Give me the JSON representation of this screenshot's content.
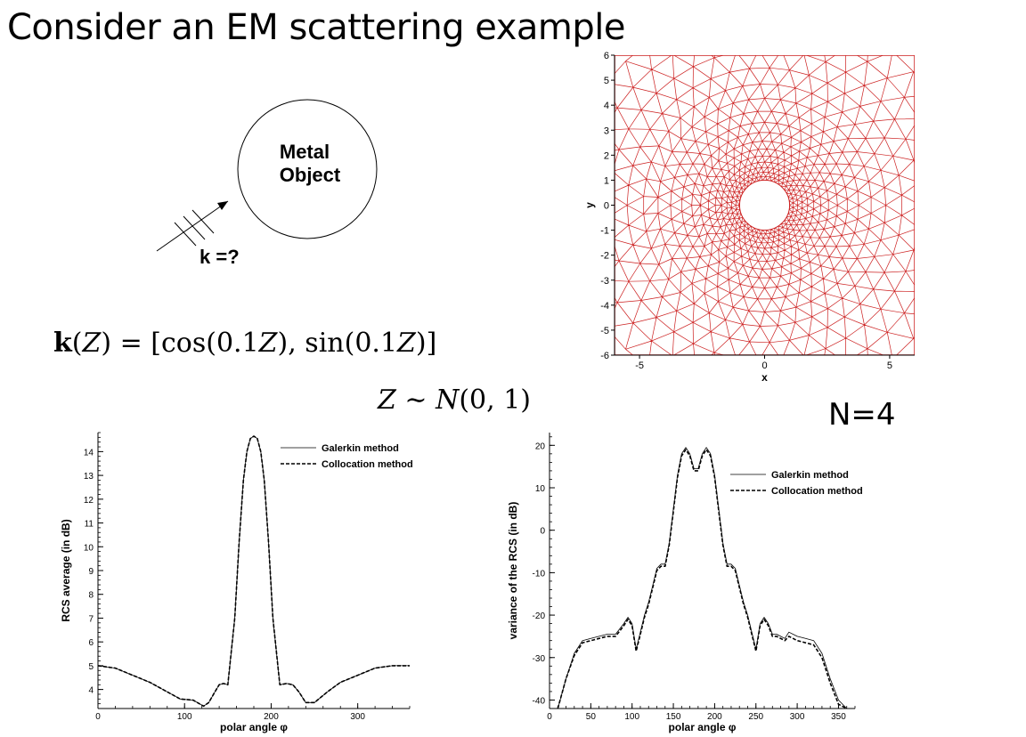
{
  "slide": {
    "title": "Consider an EM scattering example",
    "n_label": "N=4"
  },
  "schematic": {
    "object_label_line1": "Metal",
    "object_label_line2": "Object",
    "wave_label": "k =?"
  },
  "equations": {
    "k_def": {
      "k": "k",
      "lpar": "(",
      "Z": "Z",
      "mid": ") = [cos(0.1",
      "Z2": "Z",
      "mid2": "), sin(0.1",
      "Z3": "Z",
      "end": ")]"
    },
    "z_dist": {
      "Z": "Z",
      "rest": " ∼ ",
      "N": "N",
      "args": "(0, 1)"
    }
  },
  "chart_data": [
    {
      "type": "mesh",
      "xlabel": "x",
      "ylabel": "y",
      "xlim": [
        -6,
        6
      ],
      "ylim": [
        -6,
        6
      ],
      "xticks": [
        -5,
        0,
        5
      ],
      "yticks": [
        6,
        5,
        4,
        3,
        2,
        1,
        0,
        -1,
        -2,
        -3,
        -4,
        -5,
        -6
      ],
      "obstacle_radius": 1,
      "mesh_color": "#cc1f1f"
    },
    {
      "type": "line",
      "xlabel": "polar angle φ",
      "ylabel": "RCS average (in dB)",
      "xlim": [
        0,
        360
      ],
      "ylim": [
        3.2,
        14.8
      ],
      "xticks": [
        0,
        100,
        200,
        300
      ],
      "yticks": [
        14,
        13,
        12,
        11,
        10,
        9,
        8,
        7,
        6,
        5,
        4
      ],
      "legend": "top-right",
      "series": [
        {
          "name": "Galerkin method",
          "style": "solid",
          "x": [
            0,
            20,
            40,
            60,
            80,
            95,
            110,
            122,
            128,
            135,
            140,
            145,
            150,
            158,
            163,
            168,
            172,
            176,
            180,
            184,
            188,
            192,
            197,
            202,
            210,
            218,
            225,
            232,
            240,
            250,
            265,
            280,
            300,
            320,
            340,
            350,
            360
          ],
          "y": [
            5.0,
            4.9,
            4.6,
            4.3,
            3.9,
            3.6,
            3.55,
            3.3,
            3.45,
            3.9,
            4.2,
            4.25,
            4.2,
            7.0,
            10.2,
            12.8,
            14.0,
            14.55,
            14.65,
            14.55,
            14.0,
            12.8,
            10.2,
            7.0,
            4.2,
            4.25,
            4.2,
            3.9,
            3.45,
            3.45,
            3.9,
            4.3,
            4.6,
            4.9,
            5.0,
            5.0,
            5.0
          ]
        },
        {
          "name": "Collocation method",
          "style": "dashed",
          "x": [
            0,
            20,
            40,
            60,
            80,
            95,
            110,
            122,
            128,
            135,
            140,
            145,
            150,
            158,
            163,
            168,
            172,
            176,
            180,
            184,
            188,
            192,
            197,
            202,
            210,
            218,
            225,
            232,
            240,
            250,
            265,
            280,
            300,
            320,
            340,
            350,
            360
          ],
          "y": [
            5.0,
            4.9,
            4.6,
            4.3,
            3.9,
            3.6,
            3.55,
            3.3,
            3.45,
            3.9,
            4.2,
            4.25,
            4.2,
            7.0,
            10.2,
            12.8,
            14.0,
            14.55,
            14.65,
            14.55,
            14.0,
            12.8,
            10.2,
            7.0,
            4.2,
            4.25,
            4.2,
            3.9,
            3.45,
            3.45,
            3.9,
            4.3,
            4.6,
            4.9,
            5.0,
            5.0,
            5.0
          ]
        }
      ]
    },
    {
      "type": "line",
      "xlabel": "polar angle φ",
      "ylabel": "variance of the RCS (in dB)",
      "xlim": [
        0,
        370
      ],
      "ylim": [
        -42,
        23
      ],
      "xticks": [
        0,
        50,
        100,
        150,
        200,
        250,
        300,
        350
      ],
      "yticks": [
        20,
        10,
        0,
        -10,
        -20,
        -30,
        -40
      ],
      "legend": "top-right",
      "series": [
        {
          "name": "Galerkin method",
          "style": "solid",
          "x": [
            10,
            20,
            30,
            40,
            50,
            60,
            70,
            80,
            90,
            95,
            100,
            105,
            110,
            115,
            120,
            125,
            130,
            135,
            140,
            145,
            150,
            155,
            160,
            165,
            170,
            175,
            180,
            185,
            190,
            195,
            200,
            205,
            210,
            215,
            220,
            225,
            230,
            235,
            240,
            245,
            250,
            255,
            260,
            265,
            270,
            275,
            280,
            285,
            290,
            300,
            310,
            320,
            330,
            340,
            350,
            360
          ],
          "y": [
            -42,
            -35,
            -29,
            -26,
            -25.5,
            -25,
            -24.5,
            -24.5,
            -22,
            -20.5,
            -22,
            -28,
            -24,
            -20,
            -17,
            -13,
            -9,
            -8,
            -8,
            -3,
            5,
            13,
            18,
            19.5,
            18,
            14.5,
            14.5,
            18,
            19.5,
            18,
            13,
            5,
            -3,
            -8,
            -8,
            -9,
            -13,
            -17,
            -20,
            -24,
            -28,
            -22,
            -20.5,
            -22,
            -24.5,
            -24.5,
            -25,
            -25.5,
            -24,
            -25,
            -25.5,
            -26,
            -29,
            -35,
            -40,
            -42
          ]
        },
        {
          "name": "Collocation method",
          "style": "dashed",
          "x": [
            10,
            20,
            30,
            40,
            50,
            60,
            70,
            80,
            90,
            95,
            100,
            105,
            110,
            115,
            120,
            125,
            130,
            135,
            140,
            145,
            150,
            155,
            160,
            165,
            170,
            175,
            180,
            185,
            190,
            195,
            200,
            205,
            210,
            215,
            220,
            225,
            230,
            235,
            240,
            245,
            250,
            255,
            260,
            265,
            270,
            275,
            280,
            285,
            290,
            300,
            310,
            320,
            330,
            340,
            350,
            360
          ],
          "y": [
            -42,
            -35,
            -29.5,
            -26.5,
            -26,
            -25.5,
            -25,
            -25,
            -22.5,
            -21,
            -22.5,
            -28.5,
            -24.5,
            -20.5,
            -17.5,
            -13.5,
            -9.5,
            -8.5,
            -8.5,
            -3.5,
            4.5,
            12.5,
            17.5,
            19,
            17.5,
            14,
            14,
            17.5,
            19,
            17.5,
            12.5,
            4.5,
            -3.5,
            -8.5,
            -8.5,
            -9.5,
            -13.5,
            -17.5,
            -20.5,
            -24.5,
            -28.5,
            -22.5,
            -21,
            -22.5,
            -25,
            -25,
            -25.5,
            -26,
            -25,
            -26,
            -26.5,
            -27,
            -30,
            -36,
            -41,
            -42
          ]
        }
      ]
    }
  ]
}
